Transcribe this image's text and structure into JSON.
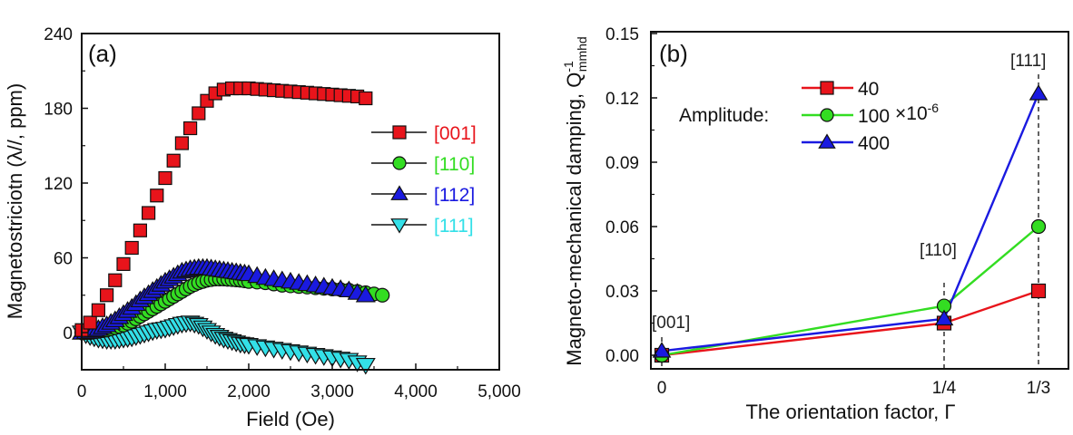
{
  "chart_data": [
    {
      "panel": "(a)",
      "type": "scatter",
      "xlabel": "Field (Oe)",
      "ylabel": "Magnetostriciotn (λ//,  ppm)",
      "xlim": [
        0,
        5000
      ],
      "ylim": [
        -30,
        240
      ],
      "xticks": [
        0,
        1000,
        2000,
        3000,
        4000,
        5000
      ],
      "xtick_labels": [
        "0",
        "1,000",
        "2,000",
        "3,000",
        "4,000",
        "5,000"
      ],
      "yticks": [
        0,
        60,
        120,
        180,
        240
      ],
      "ytick_labels": [
        "0",
        "60",
        "120",
        "180",
        "240"
      ],
      "grid": false,
      "legend_position": "right",
      "series": [
        {
          "name": "[001]",
          "marker": "square",
          "color": "#e8141b",
          "x": [
            0,
            100,
            200,
            300,
            400,
            500,
            600,
            700,
            800,
            900,
            1000,
            1100,
            1200,
            1300,
            1400,
            1500,
            1600,
            1700,
            1800,
            1900,
            2000,
            2100,
            2200,
            2300,
            2400,
            2500,
            2600,
            2700,
            2800,
            2900,
            3000,
            3100,
            3200,
            3300,
            3400
          ],
          "y": [
            2,
            8,
            18,
            30,
            42,
            55,
            68,
            82,
            96,
            110,
            124,
            138,
            152,
            164,
            176,
            186,
            192,
            195,
            196,
            196,
            196,
            195.5,
            195,
            194.5,
            194,
            193.5,
            193,
            192.5,
            192,
            191.5,
            191,
            190.5,
            190,
            189.5,
            188
          ]
        },
        {
          "name": "[110]",
          "marker": "circle",
          "color": "#33dd22",
          "x": [
            0,
            100,
            200,
            300,
            400,
            500,
            600,
            700,
            800,
            900,
            1000,
            1100,
            1200,
            1300,
            1400,
            1500,
            1600,
            1700,
            1800,
            1900,
            2000,
            2200,
            2400,
            2600,
            2800,
            3000,
            3200,
            3400,
            3600
          ],
          "y": [
            0,
            0,
            1,
            2,
            4,
            6,
            9,
            13,
            17,
            21,
            25,
            29,
            33,
            37,
            40,
            42,
            43,
            43,
            42.5,
            42,
            41,
            40,
            38,
            37,
            36,
            35,
            34,
            32,
            30
          ]
        },
        {
          "name": "[112]",
          "marker": "triangle-up",
          "color": "#1a1ae0",
          "x": [
            0,
            100,
            200,
            300,
            400,
            500,
            600,
            700,
            800,
            900,
            1000,
            1100,
            1200,
            1300,
            1400,
            1500,
            1600,
            1700,
            1800,
            1900,
            2000,
            2200,
            2400,
            2600,
            2800,
            3000,
            3200,
            3400
          ],
          "y": [
            0,
            1,
            3,
            6,
            10,
            15,
            20,
            26,
            31,
            36,
            41,
            45,
            49,
            51,
            52,
            52,
            51,
            50,
            49,
            48,
            47,
            44,
            42,
            40,
            38,
            36,
            34,
            30
          ]
        },
        {
          "name": "[111]",
          "marker": "triangle-down",
          "color": "#33e0e8",
          "x": [
            0,
            100,
            200,
            300,
            400,
            500,
            600,
            700,
            800,
            900,
            1000,
            1100,
            1200,
            1300,
            1400,
            1500,
            1600,
            1700,
            1800,
            1900,
            2000,
            2200,
            2400,
            2600,
            2800,
            3000,
            3200,
            3400
          ],
          "y": [
            0,
            -3,
            -5,
            -6,
            -6,
            -5,
            -4,
            -2,
            0,
            2,
            3,
            5,
            7,
            8,
            6,
            2,
            -2,
            -5,
            -7,
            -9,
            -10,
            -12,
            -14,
            -16,
            -18,
            -20,
            -22,
            -26
          ]
        }
      ]
    },
    {
      "panel": "(b)",
      "type": "line",
      "xlabel": "The orientation factor, Γ",
      "ylabel": "Magneto-mechanical damping, Q",
      "ylabel_sup": "-1",
      "ylabel_sub": "mmhd",
      "categories": [
        "0",
        "1/4",
        "1/3"
      ],
      "x": [
        0,
        0.25,
        0.3333
      ],
      "xlim": [
        -0.01,
        0.3667
      ],
      "ylim": [
        -0.005,
        0.15
      ],
      "yticks": [
        0.0,
        0.03,
        0.06,
        0.09,
        0.12,
        0.15
      ],
      "ytick_labels": [
        "0.00",
        "0.03",
        "0.06",
        "0.09",
        "0.12",
        "0.15"
      ],
      "grid": false,
      "legend_title": "Amplitude:",
      "legend_unit": "×10",
      "legend_unit_exp": "-6",
      "legend_position": "top-center",
      "annotations": [
        "[001]",
        "[110]",
        "[111]"
      ],
      "series": [
        {
          "name": "40",
          "marker": "square",
          "color": "#e8141b",
          "values": [
            0.0,
            0.015,
            0.03
          ]
        },
        {
          "name": "100",
          "marker": "circle",
          "color": "#33dd22",
          "values": [
            0.0,
            0.023,
            0.06
          ]
        },
        {
          "name": "400",
          "marker": "triangle-up",
          "color": "#1a1ae0",
          "values": [
            0.002,
            0.017,
            0.122
          ]
        }
      ]
    }
  ]
}
